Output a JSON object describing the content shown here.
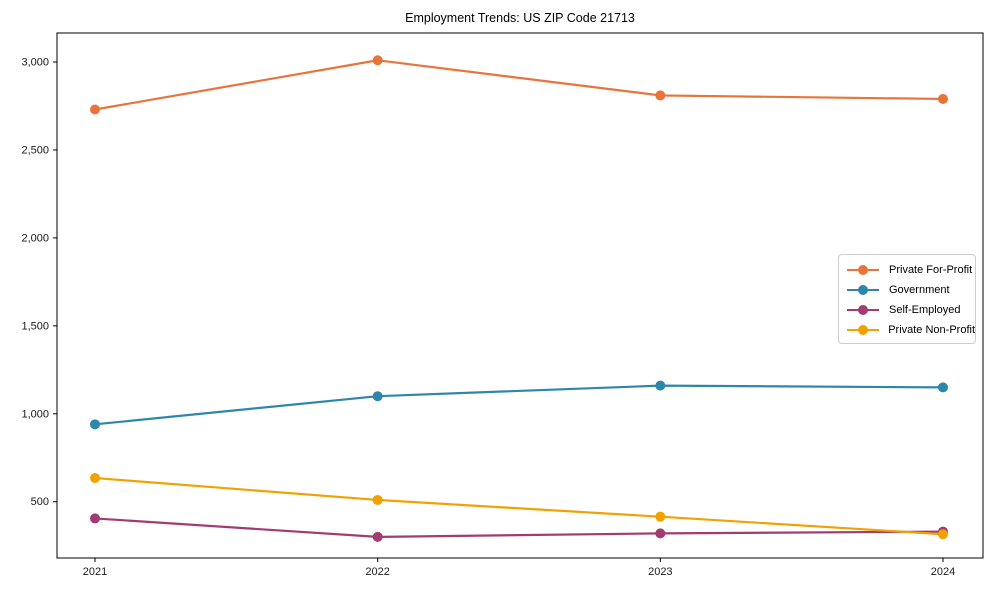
{
  "title": "Employment Trends: US ZIP Code 21713",
  "chart_data": {
    "type": "line",
    "title": "Employment Trends: US ZIP Code 21713",
    "xlabel": "",
    "ylabel": "",
    "x_categories": [
      "2021",
      "2022",
      "2023",
      "2024"
    ],
    "series": [
      {
        "name": "Private For-Profit",
        "color": "#E8743B",
        "values": [
          2730,
          3010,
          2810,
          2790
        ]
      },
      {
        "name": "Government",
        "color": "#2E86AB",
        "values": [
          940,
          1100,
          1160,
          1150
        ]
      },
      {
        "name": "Self-Employed",
        "color": "#A23B72",
        "values": [
          405,
          300,
          320,
          330
        ]
      },
      {
        "name": "Private Non-Profit",
        "color": "#F0A202",
        "values": [
          635,
          510,
          415,
          315
        ]
      }
    ],
    "y_ticks": [
      {
        "value": 500,
        "label": "500"
      },
      {
        "value": 1000,
        "label": "1,000"
      },
      {
        "value": 1500,
        "label": "1,500"
      },
      {
        "value": 2000,
        "label": "2,000"
      },
      {
        "value": 2500,
        "label": "2,500"
      },
      {
        "value": 3000,
        "label": "3,000"
      }
    ],
    "ylim": [
      180,
      3165
    ],
    "grid": false,
    "legend_position": "center right",
    "marker": "circle"
  }
}
